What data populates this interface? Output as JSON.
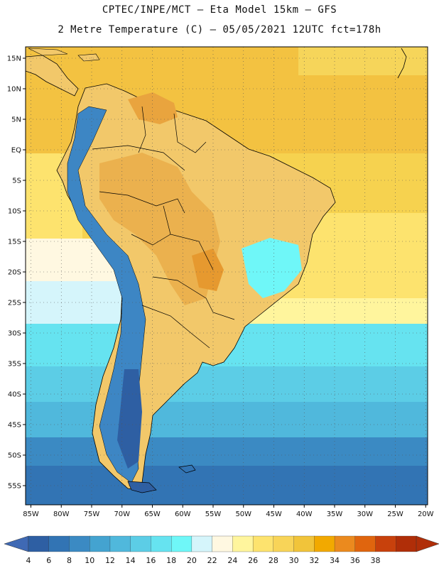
{
  "title": {
    "line1": "CPTEC/INPE/MCT –  Eta Model 15km – GFS",
    "line2": "2 Metre Temperature (C) – 05/05/2021 12UTC fct=178h"
  },
  "axes": {
    "lat_labels": [
      "15N",
      "10N",
      "5N",
      "EQ",
      "5S",
      "10S",
      "15S",
      "20S",
      "25S",
      "30S",
      "35S",
      "40S",
      "45S",
      "50S",
      "55S"
    ],
    "lon_labels": [
      "85W",
      "80W",
      "75W",
      "70W",
      "65W",
      "60W",
      "55W",
      "50W",
      "45W",
      "40W",
      "35W",
      "30W",
      "25W",
      "20W"
    ]
  },
  "colorbar": {
    "labels": [
      "4",
      "6",
      "8",
      "10",
      "12",
      "14",
      "16",
      "18",
      "20",
      "22",
      "24",
      "26",
      "28",
      "30",
      "32",
      "34",
      "36",
      "38"
    ],
    "colors": [
      "#2e5fa3",
      "#3274b4",
      "#3b8ac3",
      "#44a3d0",
      "#50b8dc",
      "#5ccde6",
      "#66e3f0",
      "#6ff7f8",
      "#d5f5fb",
      "#fff8e1",
      "#fff59d",
      "#fde36e",
      "#f8d458",
      "#f1c43a",
      "#f2a900",
      "#eb8a1e",
      "#e0650e",
      "#c8410c",
      "#b02e08"
    ],
    "under_color": "#3f69b4",
    "over_color": "#b02e08"
  },
  "map": {
    "land_color": "#f2c86a",
    "ocean_color": "#f6d24f",
    "highlands_color": "#ebb14e",
    "andes_color": "#3d86c4"
  }
}
